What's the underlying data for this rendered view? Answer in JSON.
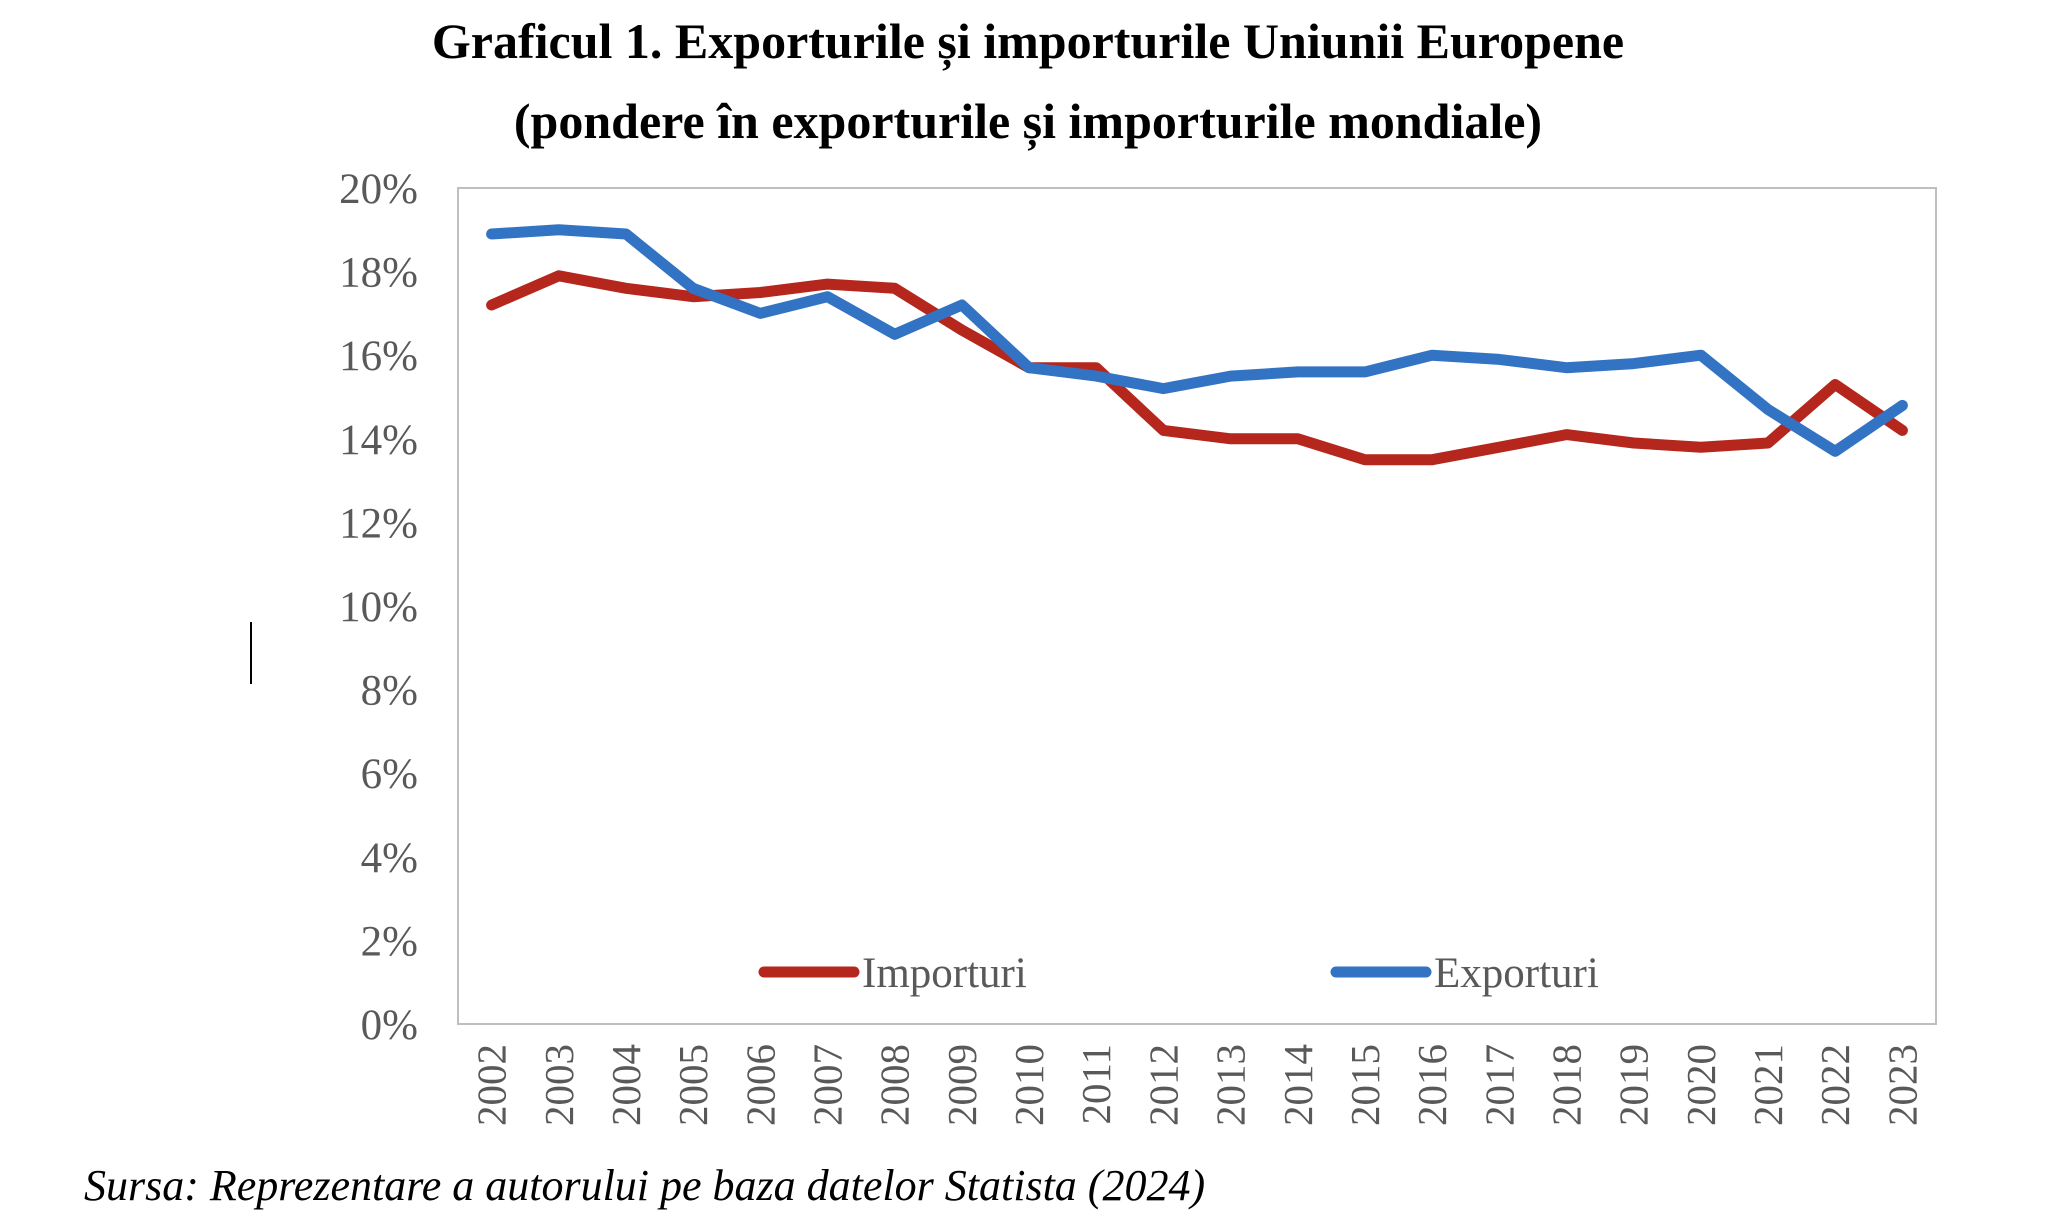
{
  "chart_data": {
    "type": "line",
    "title": "Graficul 1. Exporturile și importurile Uniunii Europene",
    "subtitle": "(pondere în exporturile și importurile mondiale)",
    "x": [
      "2002",
      "2003",
      "2004",
      "2005",
      "2006",
      "2007",
      "2008",
      "2009",
      "2010",
      "2011",
      "2012",
      "2013",
      "2014",
      "2015",
      "2016",
      "2017",
      "2018",
      "2019",
      "2020",
      "2021",
      "2022",
      "2023"
    ],
    "series": [
      {
        "name": "Importuri",
        "color": "#B5271D",
        "values": [
          17.2,
          17.9,
          17.6,
          17.4,
          17.5,
          17.7,
          17.6,
          16.6,
          15.7,
          15.7,
          14.2,
          14.0,
          14.0,
          13.5,
          13.5,
          13.8,
          14.1,
          13.9,
          13.8,
          13.9,
          15.3,
          14.2
        ]
      },
      {
        "name": "Exporturi",
        "color": "#3273C4",
        "values": [
          18.9,
          19.0,
          18.9,
          17.6,
          17.0,
          17.4,
          16.5,
          17.2,
          15.7,
          15.5,
          15.2,
          15.5,
          15.6,
          15.6,
          16.0,
          15.9,
          15.7,
          15.8,
          16.0,
          14.7,
          13.7,
          14.8
        ]
      }
    ],
    "ylim": [
      0,
      20
    ],
    "yticks": [
      "0%",
      "2%",
      "4%",
      "6%",
      "8%",
      "10%",
      "12%",
      "14%",
      "16%",
      "18%",
      "20%"
    ],
    "grid": false,
    "legend_position": "bottom-inside"
  },
  "source_text": "Sursa: Reprezentare a autorului pe baza datelor Statista (2024)"
}
